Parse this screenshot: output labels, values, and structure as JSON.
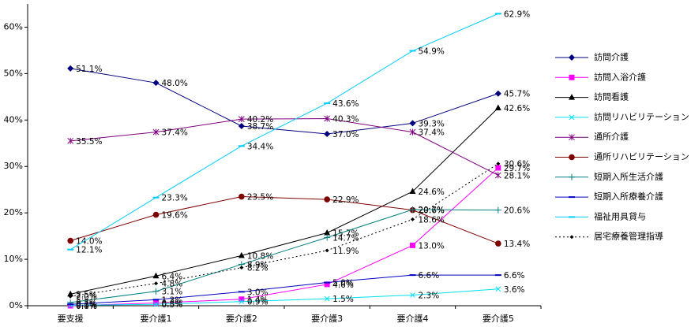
{
  "chart_data": {
    "type": "line",
    "categories": [
      "要支援",
      "要介護1",
      "要介護2",
      "要介護3",
      "要介護4",
      "要介護5"
    ],
    "ylim": [
      0,
      65
    ],
    "yticks": [
      {
        "value": 0,
        "label": "0%"
      },
      {
        "value": 10,
        "label": "10%"
      },
      {
        "value": 20,
        "label": "20%"
      },
      {
        "value": 30,
        "label": "30%"
      },
      {
        "value": 40,
        "label": "40%"
      },
      {
        "value": 50,
        "label": "50%"
      },
      {
        "value": 60,
        "label": "60%"
      }
    ],
    "legend": "right",
    "series": [
      {
        "name": "訪問介護",
        "color": "#000080",
        "marker": "diamond",
        "dash": "solid",
        "values": [
          51.1,
          48.0,
          38.7,
          37.0,
          39.3,
          45.7
        ],
        "value_labels": [
          "51.1%",
          "48.0%",
          "38.7%",
          "37.0%",
          "39.3%",
          "45.7%"
        ]
      },
      {
        "name": "訪問入浴介護",
        "color": "#ff00ff",
        "marker": "square",
        "dash": "solid",
        "values": [
          0.0,
          0.6,
          1.4,
          4.6,
          13.0,
          29.7
        ],
        "value_labels": [
          "0.0%",
          "0.6%",
          "1.4%",
          "4.6%",
          "13.0%",
          "29.7%"
        ]
      },
      {
        "name": "訪問看護",
        "color": "#000000",
        "marker": "triangle",
        "dash": "solid",
        "values": [
          2.5,
          6.4,
          10.8,
          15.7,
          24.6,
          42.6
        ],
        "value_labels": [
          "2.5%",
          "6.4%",
          "10.8%",
          "15.7%",
          "24.6%",
          "42.6%"
        ]
      },
      {
        "name": "訪問リハビリテーション",
        "color": "#00e0f0",
        "marker": "x",
        "dash": "solid",
        "values": [
          0.1,
          0.3,
          0.9,
          1.5,
          2.3,
          3.6
        ],
        "value_labels": [
          "0.1%",
          "0.3%",
          "0.9%",
          "1.5%",
          "2.3%",
          "3.6%"
        ]
      },
      {
        "name": "通所介護",
        "color": "#800080",
        "marker": "star",
        "dash": "solid",
        "values": [
          35.5,
          37.4,
          40.2,
          40.3,
          37.4,
          28.1
        ],
        "value_labels": [
          "35.5%",
          "37.4%",
          "40.2%",
          "40.3%",
          "37.4%",
          "28.1%"
        ]
      },
      {
        "name": "通所リハビリテーション",
        "color": "#800000",
        "marker": "circle",
        "dash": "solid",
        "values": [
          14.0,
          19.6,
          23.5,
          22.9,
          20.6,
          13.4
        ],
        "value_labels": [
          "14.0%",
          "19.6%",
          "23.5%",
          "22.9%",
          "20.6%",
          "13.4%"
        ]
      },
      {
        "name": "短期入所生活介護",
        "color": "#008080",
        "marker": "plus",
        "dash": "solid",
        "values": [
          0.7,
          3.1,
          8.9,
          14.7,
          20.7,
          20.6
        ],
        "value_labels": [
          "0.7%",
          "3.1%",
          "8.9%",
          "14.7%",
          "20.7%",
          "20.6%"
        ]
      },
      {
        "name": "短期入所療養介護",
        "color": "#0000c0",
        "marker": "dash",
        "dash": "solid",
        "values": [
          0.3,
          1.3,
          3.0,
          5.0,
          6.6,
          6.6
        ],
        "value_labels": [
          "0.3%",
          "1.3%",
          "3.0%",
          "5.0%",
          "6.6%",
          "6.6%"
        ]
      },
      {
        "name": "福祉用具貸与",
        "color": "#00ccff",
        "marker": "dash",
        "dash": "solid",
        "values": [
          12.1,
          23.3,
          34.4,
          43.6,
          54.9,
          62.9
        ],
        "value_labels": [
          "12.1%",
          "23.3%",
          "34.4%",
          "43.6%",
          "54.9%",
          "62.9%"
        ]
      },
      {
        "name": "居宅療養管理指導",
        "color": "#000000",
        "marker": "smalldiamond",
        "dash": "dotted",
        "values": [
          2.0,
          4.8,
          8.2,
          11.9,
          18.6,
          30.6
        ],
        "value_labels": [
          "2.0%",
          "4.8%",
          "8.2%",
          "11.9%",
          "18.6%",
          "30.6%"
        ]
      }
    ]
  }
}
